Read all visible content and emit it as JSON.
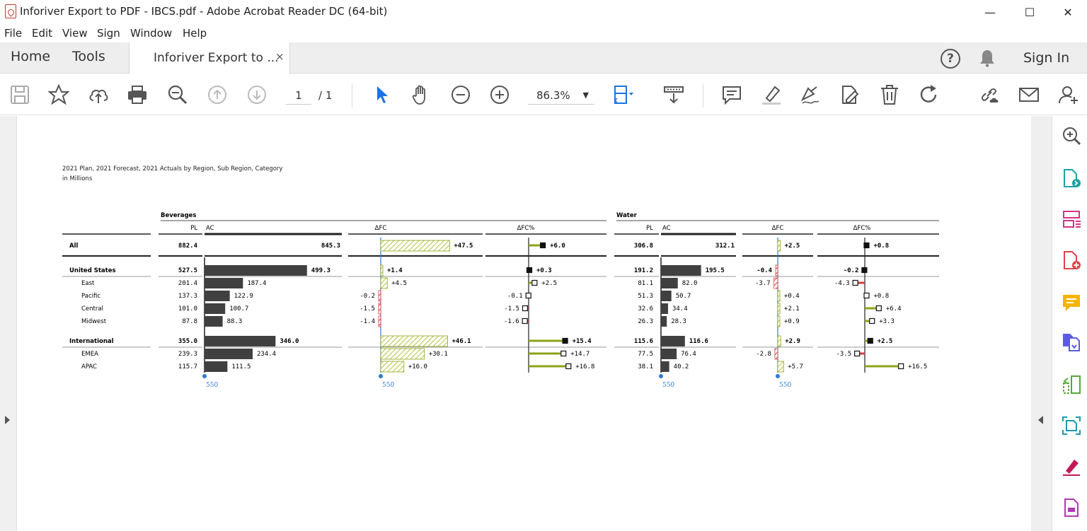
{
  "window": {
    "title": "Inforiver Export to PDF - IBCS.pdf - Adobe Acrobat Reader DC (64-bit)",
    "minimize": "—",
    "maximize": "☐",
    "close": "✕"
  },
  "menu": [
    "File",
    "Edit",
    "View",
    "Sign",
    "Window",
    "Help"
  ],
  "tabs": {
    "home": "Home",
    "tools": "Tools",
    "document": "Inforiver Export to ...",
    "close": "×",
    "help": "?",
    "sign_in": "Sign In"
  },
  "toolbar": {
    "page_current": "1",
    "page_total": "/ 1",
    "zoom": "86.3%",
    "zoom_caret": "▼",
    "icons": [
      "save-icon",
      "bookmark-star-icon",
      "upload-cloud-icon",
      "print-icon",
      "zoom-search-icon",
      "page-up-icon",
      "page-down-icon",
      "select-arrow-icon",
      "hand-pan-icon",
      "zoom-out-icon",
      "zoom-in-icon",
      "fit-page-icon",
      "scroll-mode-icon",
      "comment-icon",
      "highlight-icon",
      "sign-pen-icon",
      "edit-pdf-icon",
      "delete-icon",
      "rotate-icon",
      "share-link-icon",
      "email-icon",
      "add-user-icon"
    ]
  },
  "right_tools": [
    "search-zoom-icon",
    "export-pdf-icon",
    "organize-pages-icon",
    "create-pdf-icon",
    "comment-tool-icon",
    "combine-files-icon",
    "compress-icon",
    "scan-icon",
    "fill-sign-icon",
    "more-tools-icon"
  ],
  "report": {
    "caption_line1": "2021 Plan, 2021 Forecast, 2021 Actuals by Region, Sub Region, Category",
    "caption_line2": "in Millions",
    "groups": [
      "Beverages",
      "Water"
    ],
    "col_headers": {
      "pl": "PL",
      "ac": "AC",
      "dfc": "ΔFC",
      "dfc_pct": "ΔFC%"
    },
    "axis_label": "550",
    "colors": {
      "bar": "#404040",
      "positive": "#8ca317",
      "negative": "#d9413b",
      "hatch_pos": "#b4c43c",
      "axis_blue": "#2f7ad1"
    },
    "rows": [
      {
        "label": "All",
        "level": 0,
        "bold": true
      },
      {
        "label": "United States",
        "level": 1,
        "bold": true
      },
      {
        "label": "East",
        "level": 2,
        "bold": false
      },
      {
        "label": "Pacific",
        "level": 2,
        "bold": false
      },
      {
        "label": "Central",
        "level": 2,
        "bold": false
      },
      {
        "label": "Midwest",
        "level": 2,
        "bold": false
      },
      {
        "label": "International",
        "level": 1,
        "bold": true
      },
      {
        "label": "EMEA",
        "level": 2,
        "bold": false
      },
      {
        "label": "APAC",
        "level": 2,
        "bold": false
      }
    ],
    "beverages": {
      "pl": [
        "882.4",
        "527.5",
        "201.4",
        "137.3",
        "101.0",
        "87.8",
        "355.0",
        "239.3",
        "115.7"
      ],
      "ac": [
        "845.3",
        "499.3",
        "187.4",
        "122.9",
        "100.7",
        "88.3",
        "346.0",
        "234.4",
        "111.5"
      ],
      "ac_values": [
        845.3,
        499.3,
        187.4,
        122.9,
        100.7,
        88.3,
        346.0,
        234.4,
        111.5
      ],
      "dfc": [
        "+47.5",
        "+1.4",
        "+4.5",
        "-0.2",
        "-1.5",
        "-1.4",
        "+46.1",
        "+30.1",
        "+16.0"
      ],
      "dfc_values": [
        47.5,
        1.4,
        4.5,
        -0.2,
        -1.5,
        -1.4,
        46.1,
        30.1,
        16.0
      ],
      "dfc_pct": [
        "+6.0",
        "+0.3",
        "+2.5",
        "-0.1",
        "-1.5",
        "-1.6",
        "+15.4",
        "+14.7",
        "+16.8"
      ],
      "dfc_pct_values": [
        6.0,
        0.3,
        2.5,
        -0.1,
        -1.5,
        -1.6,
        15.4,
        14.7,
        16.8
      ]
    },
    "water": {
      "pl": [
        "306.8",
        "191.2",
        "81.1",
        "51.3",
        "32.6",
        "26.3",
        "115.6",
        "77.5",
        "38.1"
      ],
      "ac": [
        "312.1",
        "195.5",
        "82.0",
        "50.7",
        "34.4",
        "28.3",
        "116.6",
        "76.4",
        "40.2"
      ],
      "ac_values": [
        312.1,
        195.5,
        82.0,
        50.7,
        34.4,
        28.3,
        116.6,
        76.4,
        40.2
      ],
      "dfc": [
        "+2.5",
        "-0.4",
        "-3.7",
        "+0.4",
        "+2.1",
        "+0.9",
        "+2.9",
        "-2.8",
        "+5.7"
      ],
      "dfc_values": [
        2.5,
        -0.4,
        -3.7,
        0.4,
        2.1,
        0.9,
        2.9,
        -2.8,
        5.7
      ],
      "dfc_pct": [
        "+0.8",
        "-0.2",
        "-4.3",
        "+0.8",
        "+6.4",
        "+3.3",
        "+2.5",
        "-3.5",
        "+16.5"
      ],
      "dfc_pct_values": [
        0.8,
        -0.2,
        -4.3,
        0.8,
        6.4,
        3.3,
        2.5,
        -3.5,
        16.5
      ]
    }
  }
}
